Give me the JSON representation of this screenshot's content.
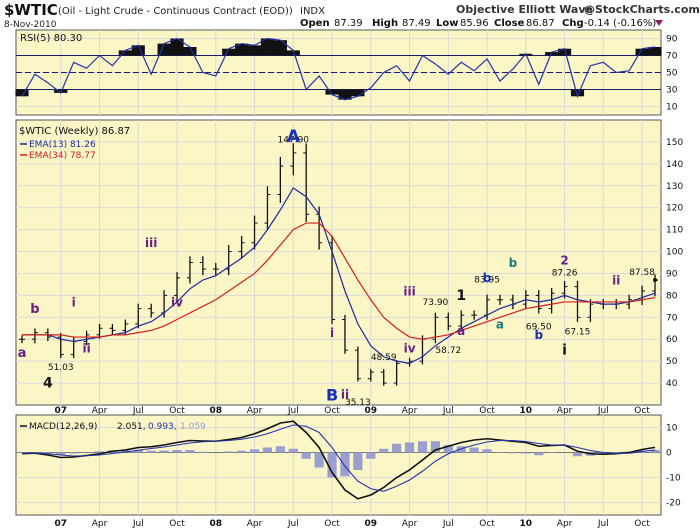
{
  "colors": {
    "panel_bg": "#fbf6c6",
    "panel_border": "#555555",
    "grid": "#d9d9d9",
    "price": "#111111",
    "ema13": "#1e2a9e",
    "ema34": "#d21f1f",
    "rsi": "#2233aa",
    "macd": "#111111",
    "signal": "#2233aa",
    "hist": "#9a9fd0",
    "wave_blue": "#1a2fb8",
    "wave_purple": "#6a1f82",
    "wave_teal": "#1a7a80",
    "wave_black": "#111111"
  },
  "header": {
    "symbol": "$WTIC",
    "name": "(Oil - Light Crude - Continuous Contract (EOD))",
    "exchange": "INDX",
    "source": "Objective Elliott Wave",
    "site": "@StockCharts.com",
    "date": "8-Nov-2010",
    "open_label": "Open",
    "open": "87.39",
    "high_label": "High",
    "high": "87.49",
    "low_label": "Low",
    "low": "85.96",
    "close_label": "Close",
    "close": "86.87",
    "chg_label": "Chg",
    "chg": "-0.14 (-0.16%)"
  },
  "legend": {
    "rsi": "RSI(5) 80.30",
    "price": "$WTIC (Weekly) 86.87",
    "ema13": "EMA(13) 81.26",
    "ema34": "EMA(34) 78.77",
    "macd_label": "MACD(12,26,9)",
    "macd_v1": "2.051,",
    "macd_v2": "0.993,",
    "macd_v3": "1.059"
  },
  "x_ticks": [
    "07",
    "Apr",
    "Jul",
    "Oct",
    "08",
    "Apr",
    "Jul",
    "Oct",
    "09",
    "Apr",
    "Jul",
    "Oct",
    "10",
    "Apr",
    "Jul",
    "Oct"
  ],
  "chart_data": [
    {
      "type": "line",
      "title": "RSI(5)",
      "ylim": [
        0,
        100
      ],
      "y_ticks": [
        10,
        30,
        50,
        70,
        90
      ],
      "levels": [
        30,
        70
      ],
      "x": [
        "2006-10",
        "2006-11",
        "2006-12",
        "2007-01",
        "2007-02",
        "2007-03",
        "2007-04",
        "2007-05",
        "2007-06",
        "2007-07",
        "2007-08",
        "2007-09",
        "2007-10",
        "2007-11",
        "2007-12",
        "2008-01",
        "2008-02",
        "2008-03",
        "2008-04",
        "2008-05",
        "2008-06",
        "2008-07",
        "2008-08",
        "2008-09",
        "2008-10",
        "2008-11",
        "2008-12",
        "2009-01",
        "2009-02",
        "2009-03",
        "2009-04",
        "2009-05",
        "2009-06",
        "2009-07",
        "2009-08",
        "2009-09",
        "2009-10",
        "2009-11",
        "2009-12",
        "2010-01",
        "2010-02",
        "2010-03",
        "2010-04",
        "2010-05",
        "2010-06",
        "2010-07",
        "2010-08",
        "2010-09",
        "2010-10",
        "2010-11"
      ],
      "values": [
        22,
        48,
        38,
        26,
        62,
        55,
        70,
        58,
        76,
        82,
        48,
        84,
        90,
        80,
        50,
        46,
        78,
        84,
        82,
        90,
        88,
        76,
        30,
        46,
        24,
        18,
        22,
        32,
        50,
        58,
        40,
        70,
        60,
        48,
        62,
        52,
        66,
        40,
        54,
        72,
        36,
        74,
        78,
        22,
        58,
        62,
        50,
        52,
        78,
        80
      ]
    },
    {
      "type": "line",
      "title": "$WTIC (Weekly)",
      "ylim": [
        30,
        160
      ],
      "y_ticks": [
        40,
        50,
        60,
        70,
        80,
        90,
        100,
        110,
        120,
        130,
        140,
        150
      ],
      "x": [
        "2006-10",
        "2006-11",
        "2006-12",
        "2007-01",
        "2007-02",
        "2007-03",
        "2007-04",
        "2007-05",
        "2007-06",
        "2007-07",
        "2007-08",
        "2007-09",
        "2007-10",
        "2007-11",
        "2007-12",
        "2008-01",
        "2008-02",
        "2008-03",
        "2008-04",
        "2008-05",
        "2008-06",
        "2008-07",
        "2008-08",
        "2008-09",
        "2008-10",
        "2008-11",
        "2008-12",
        "2009-01",
        "2009-02",
        "2009-03",
        "2009-04",
        "2009-05",
        "2009-06",
        "2009-07",
        "2009-08",
        "2009-09",
        "2009-10",
        "2009-11",
        "2009-12",
        "2010-01",
        "2010-02",
        "2010-03",
        "2010-04",
        "2010-05",
        "2010-06",
        "2010-07",
        "2010-08",
        "2010-09",
        "2010-10",
        "2010-11"
      ],
      "series": [
        {
          "name": "$WTIC (Weekly)",
          "values": [
            60,
            63,
            61,
            53,
            59,
            62,
            65,
            64,
            67,
            74,
            72,
            80,
            88,
            95,
            92,
            92,
            100,
            104,
            113,
            126,
            139,
            145,
            117,
            104,
            69,
            55,
            42,
            45,
            40,
            49,
            50,
            60,
            70,
            66,
            71,
            71,
            78,
            78,
            76,
            80,
            74,
            81,
            84,
            70,
            76,
            76,
            76,
            78,
            82,
            87
          ]
        },
        {
          "name": "EMA(13)",
          "values": [
            62,
            62,
            62,
            60,
            59,
            60,
            61,
            62,
            63,
            66,
            68,
            72,
            77,
            83,
            87,
            89,
            93,
            97,
            102,
            110,
            119,
            129,
            125,
            117,
            100,
            82,
            67,
            57,
            52,
            50,
            49,
            52,
            57,
            61,
            65,
            68,
            71,
            74,
            76,
            78,
            77,
            78,
            80,
            78,
            77,
            76,
            76,
            77,
            79,
            81
          ]
        },
        {
          "name": "EMA(34)",
          "values": [
            62,
            62,
            62,
            62,
            61,
            61,
            61,
            62,
            62,
            63,
            64,
            66,
            69,
            72,
            75,
            78,
            82,
            86,
            90,
            96,
            103,
            110,
            113,
            113,
            107,
            97,
            87,
            78,
            70,
            65,
            61,
            60,
            61,
            62,
            64,
            66,
            68,
            70,
            72,
            74,
            75,
            76,
            77,
            77,
            77,
            77,
            77,
            77,
            78,
            79
          ]
        }
      ],
      "annotations": [
        {
          "text": "147.90",
          "x": "2008-07",
          "y": 147.9
        },
        {
          "text": "51.03",
          "x": "2007-01",
          "y": 51.03
        },
        {
          "text": "35.13",
          "x": "2008-12",
          "y": 35.13
        },
        {
          "text": "48.59",
          "x": "2009-02",
          "y": 48.59
        },
        {
          "text": "73.90",
          "x": "2009-06",
          "y": 73.9
        },
        {
          "text": "58.72",
          "x": "2009-07",
          "y": 58.72
        },
        {
          "text": "83.95",
          "x": "2009-10",
          "y": 83.95
        },
        {
          "text": "69.50",
          "x": "2010-02",
          "y": 69.5
        },
        {
          "text": "87.26",
          "x": "2010-04",
          "y": 87.26
        },
        {
          "text": "67.15",
          "x": "2010-05",
          "y": 67.15
        },
        {
          "text": "87.58",
          "x": "2010-10",
          "y": 87.58
        }
      ],
      "wave_labels": [
        "A",
        "B",
        "a",
        "b",
        "4",
        "i",
        "ii",
        "iii",
        "iv",
        "i",
        "ii",
        "iii",
        "iv",
        "1",
        "a",
        "b",
        "a",
        "b",
        "b",
        "2",
        "i",
        "ii"
      ]
    },
    {
      "type": "line",
      "title": "MACD(12,26,9)",
      "ylim": [
        -25,
        15
      ],
      "y_ticks": [
        -20,
        -10,
        0,
        10
      ],
      "x": [
        "2006-10",
        "2006-11",
        "2006-12",
        "2007-01",
        "2007-02",
        "2007-03",
        "2007-04",
        "2007-05",
        "2007-06",
        "2007-07",
        "2007-08",
        "2007-09",
        "2007-10",
        "2007-11",
        "2007-12",
        "2008-01",
        "2008-02",
        "2008-03",
        "2008-04",
        "2008-05",
        "2008-06",
        "2008-07",
        "2008-08",
        "2008-09",
        "2008-10",
        "2008-11",
        "2008-12",
        "2009-01",
        "2009-02",
        "2009-03",
        "2009-04",
        "2009-05",
        "2009-06",
        "2009-07",
        "2009-08",
        "2009-09",
        "2009-10",
        "2009-11",
        "2009-12",
        "2010-01",
        "2010-02",
        "2010-03",
        "2010-04",
        "2010-05",
        "2010-06",
        "2010-07",
        "2010-08",
        "2010-09",
        "2010-10",
        "2010-11"
      ],
      "series": [
        {
          "name": "MACD",
          "values": [
            -0.5,
            -0.3,
            -1.0,
            -2.0,
            -1.8,
            -1.2,
            -0.5,
            0.5,
            1.0,
            2.0,
            2.3,
            3.0,
            4.0,
            4.8,
            4.6,
            4.5,
            5.2,
            6.0,
            7.5,
            9.5,
            11.8,
            12.5,
            8.0,
            2.0,
            -8.0,
            -15.0,
            -18.5,
            -17.0,
            -14.0,
            -10.0,
            -7.0,
            -3.0,
            1.0,
            2.5,
            4.0,
            5.0,
            5.5,
            5.0,
            4.5,
            4.0,
            2.5,
            2.8,
            3.0,
            0.5,
            -0.5,
            -0.7,
            -0.5,
            0.0,
            1.2,
            2.05
          ]
        },
        {
          "name": "Signal",
          "values": [
            -0.3,
            -0.3,
            -0.5,
            -1.0,
            -1.4,
            -1.3,
            -1.0,
            -0.4,
            0.2,
            0.9,
            1.6,
            2.2,
            3.0,
            3.8,
            4.3,
            4.5,
            4.8,
            5.3,
            6.2,
            7.5,
            9.3,
            11.0,
            10.5,
            8.0,
            2.0,
            -5.5,
            -11.5,
            -14.5,
            -15.5,
            -13.5,
            -11.0,
            -7.5,
            -3.5,
            -0.5,
            1.5,
            3.0,
            4.2,
            4.8,
            4.8,
            4.4,
            3.6,
            3.0,
            3.0,
            2.0,
            0.8,
            0.0,
            -0.4,
            -0.3,
            0.4,
            0.99
          ]
        },
        {
          "name": "Histogram",
          "values": [
            -0.2,
            0.0,
            -0.5,
            -1.0,
            -0.4,
            0.1,
            0.5,
            0.9,
            0.8,
            1.1,
            0.7,
            0.8,
            1.0,
            1.0,
            0.3,
            0.0,
            0.4,
            0.7,
            1.3,
            2.0,
            2.5,
            1.5,
            -2.5,
            -6.0,
            -10.0,
            -9.5,
            -7.0,
            -2.5,
            1.5,
            3.5,
            4.0,
            4.5,
            4.5,
            3.0,
            2.5,
            2.0,
            1.3,
            0.2,
            -0.3,
            -0.4,
            -1.1,
            -0.2,
            0.0,
            -1.5,
            -1.3,
            -0.7,
            -0.1,
            0.3,
            0.8,
            1.06
          ]
        }
      ]
    }
  ]
}
